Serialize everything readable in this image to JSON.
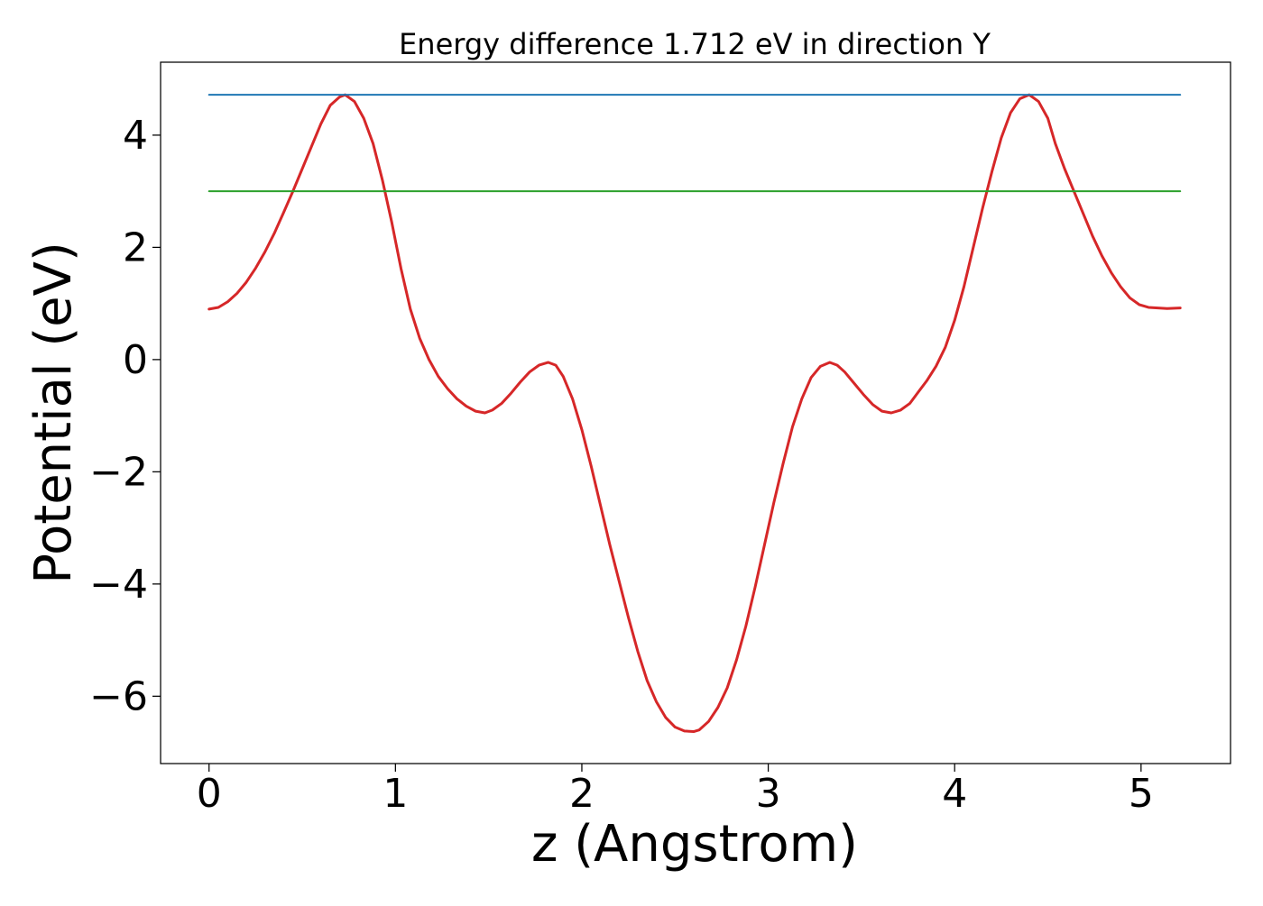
{
  "chart_data": {
    "type": "line",
    "title": "Energy difference 1.712 eV in direction Y",
    "xlabel": "z (Angstrom)",
    "ylabel": "Potential (eV)",
    "xlim": [
      -0.26,
      5.48
    ],
    "ylim": [
      -7.2,
      5.3
    ],
    "x_ticks": [
      0,
      1,
      2,
      3,
      4,
      5
    ],
    "x_tick_labels": [
      "0",
      "1",
      "2",
      "3",
      "4",
      "5"
    ],
    "y_ticks": [
      4,
      2,
      0,
      -2,
      -4,
      -6
    ],
    "y_tick_labels": [
      "4",
      "2",
      "0",
      "−2",
      "−4",
      "−6"
    ],
    "grid": false,
    "legend": "none",
    "series": [
      {
        "color": "#d62728",
        "x": [
          0.0,
          0.05,
          0.1,
          0.15,
          0.2,
          0.25,
          0.3,
          0.35,
          0.4,
          0.45,
          0.5,
          0.55,
          0.6,
          0.65,
          0.7,
          0.73,
          0.78,
          0.83,
          0.88,
          0.93,
          0.98,
          1.03,
          1.08,
          1.13,
          1.18,
          1.23,
          1.28,
          1.33,
          1.38,
          1.43,
          1.48,
          1.52,
          1.57,
          1.62,
          1.67,
          1.72,
          1.77,
          1.82,
          1.86,
          1.9,
          1.95,
          2.0,
          2.05,
          2.1,
          2.15,
          2.2,
          2.25,
          2.3,
          2.35,
          2.4,
          2.45,
          2.5,
          2.55,
          2.6,
          2.63,
          2.68,
          2.73,
          2.78,
          2.83,
          2.88,
          2.93,
          2.98,
          3.03,
          3.08,
          3.13,
          3.18,
          3.23,
          3.28,
          3.33,
          3.37,
          3.41,
          3.46,
          3.51,
          3.56,
          3.61,
          3.66,
          3.71,
          3.76,
          3.8,
          3.85,
          3.9,
          3.95,
          4.0,
          4.05,
          4.1,
          4.15,
          4.2,
          4.25,
          4.3,
          4.35,
          4.4,
          4.45,
          4.5,
          4.54,
          4.59,
          4.64,
          4.69,
          4.74,
          4.79,
          4.84,
          4.89,
          4.94,
          4.99,
          5.04,
          5.09,
          5.14,
          5.21
        ],
        "values": [
          0.9,
          0.93,
          1.03,
          1.18,
          1.38,
          1.63,
          1.92,
          2.25,
          2.62,
          3.0,
          3.4,
          3.8,
          4.2,
          4.53,
          4.68,
          4.72,
          4.6,
          4.3,
          3.85,
          3.2,
          2.45,
          1.62,
          0.9,
          0.38,
          0.0,
          -0.3,
          -0.52,
          -0.7,
          -0.83,
          -0.92,
          -0.95,
          -0.9,
          -0.78,
          -0.6,
          -0.4,
          -0.22,
          -0.1,
          -0.05,
          -0.1,
          -0.3,
          -0.7,
          -1.25,
          -1.9,
          -2.6,
          -3.3,
          -3.95,
          -4.6,
          -5.2,
          -5.72,
          -6.1,
          -6.38,
          -6.55,
          -6.62,
          -6.63,
          -6.6,
          -6.45,
          -6.2,
          -5.85,
          -5.35,
          -4.75,
          -4.05,
          -3.3,
          -2.55,
          -1.85,
          -1.2,
          -0.7,
          -0.32,
          -0.12,
          -0.05,
          -0.1,
          -0.22,
          -0.42,
          -0.62,
          -0.8,
          -0.92,
          -0.95,
          -0.9,
          -0.78,
          -0.6,
          -0.38,
          -0.12,
          0.22,
          0.7,
          1.3,
          2.0,
          2.7,
          3.35,
          3.95,
          4.4,
          4.65,
          4.72,
          4.6,
          4.3,
          3.85,
          3.4,
          3.0,
          2.6,
          2.2,
          1.85,
          1.55,
          1.3,
          1.1,
          0.98,
          0.93,
          0.92,
          0.91,
          0.92
        ]
      },
      {
        "color": "#1f77b4",
        "x": [
          0.0,
          5.21
        ],
        "values": [
          4.72,
          4.72
        ]
      },
      {
        "color": "#2ca02c",
        "x": [
          0.0,
          5.21
        ],
        "values": [
          3.0,
          3.0
        ]
      }
    ]
  }
}
